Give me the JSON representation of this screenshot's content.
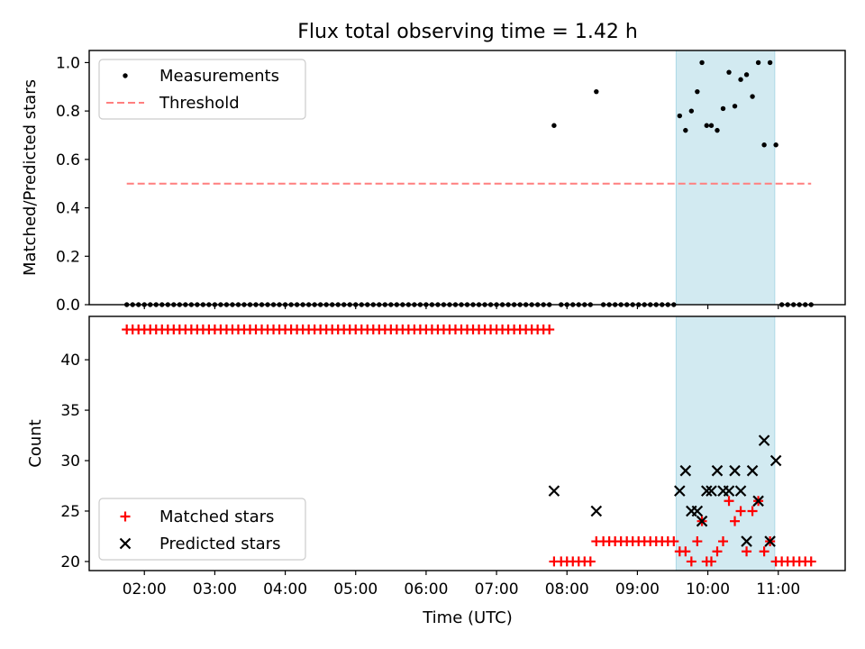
{
  "figure": {
    "title": "Flux total observing time = 1.42 h",
    "xlabel": "Time (UTC)"
  },
  "colors": {
    "measurement": "#000000",
    "threshold": "#ff7f7f",
    "matched": "#ff0000",
    "predicted": "#000000",
    "highlight": "#add8e6"
  },
  "chart_data": [
    {
      "type": "scatter",
      "ylabel": "Matched/Predicted stars",
      "xlim": [
        "01:13",
        "11:57"
      ],
      "ylim": [
        0,
        1.05
      ],
      "yticks": [
        0.0,
        0.2,
        0.4,
        0.6,
        0.8,
        1.0
      ],
      "ytick_labels": [
        "0.0",
        "0.2",
        "0.4",
        "0.6",
        "0.8",
        "1.0"
      ],
      "shaded_region": {
        "x": [
          "09:33",
          "10:57"
        ]
      },
      "legend": {
        "placement": "upper-left",
        "entries": [
          "Measurements",
          "Threshold"
        ]
      },
      "threshold": {
        "name": "Threshold",
        "y": 0.5,
        "x": [
          "01:45",
          "11:28"
        ]
      },
      "series": [
        {
          "name": "Measurements",
          "points": [
            [
              "01:45",
              0
            ],
            [
              "01:50",
              0
            ],
            [
              "01:55",
              0
            ],
            [
              "02:00",
              0
            ],
            [
              "02:05",
              0
            ],
            [
              "02:10",
              0
            ],
            [
              "02:15",
              0
            ],
            [
              "02:20",
              0
            ],
            [
              "02:25",
              0
            ],
            [
              "02:30",
              0
            ],
            [
              "02:35",
              0
            ],
            [
              "02:40",
              0
            ],
            [
              "02:45",
              0
            ],
            [
              "02:50",
              0
            ],
            [
              "02:55",
              0
            ],
            [
              "03:00",
              0
            ],
            [
              "03:05",
              0
            ],
            [
              "03:10",
              0
            ],
            [
              "03:15",
              0
            ],
            [
              "03:20",
              0
            ],
            [
              "03:25",
              0
            ],
            [
              "03:30",
              0
            ],
            [
              "03:35",
              0
            ],
            [
              "03:40",
              0
            ],
            [
              "03:45",
              0
            ],
            [
              "03:50",
              0
            ],
            [
              "03:55",
              0
            ],
            [
              "04:00",
              0
            ],
            [
              "04:05",
              0
            ],
            [
              "04:10",
              0
            ],
            [
              "04:15",
              0
            ],
            [
              "04:20",
              0
            ],
            [
              "04:25",
              0
            ],
            [
              "04:30",
              0
            ],
            [
              "04:35",
              0
            ],
            [
              "04:40",
              0
            ],
            [
              "04:45",
              0
            ],
            [
              "04:50",
              0
            ],
            [
              "04:55",
              0
            ],
            [
              "05:00",
              0
            ],
            [
              "05:05",
              0
            ],
            [
              "05:10",
              0
            ],
            [
              "05:15",
              0
            ],
            [
              "05:20",
              0
            ],
            [
              "05:25",
              0
            ],
            [
              "05:30",
              0
            ],
            [
              "05:35",
              0
            ],
            [
              "05:40",
              0
            ],
            [
              "05:45",
              0
            ],
            [
              "05:50",
              0
            ],
            [
              "05:55",
              0
            ],
            [
              "06:00",
              0
            ],
            [
              "06:05",
              0
            ],
            [
              "06:10",
              0
            ],
            [
              "06:15",
              0
            ],
            [
              "06:20",
              0
            ],
            [
              "06:25",
              0
            ],
            [
              "06:30",
              0
            ],
            [
              "06:35",
              0
            ],
            [
              "06:40",
              0
            ],
            [
              "06:45",
              0
            ],
            [
              "06:50",
              0
            ],
            [
              "06:55",
              0
            ],
            [
              "07:00",
              0
            ],
            [
              "07:05",
              0
            ],
            [
              "07:10",
              0
            ],
            [
              "07:15",
              0
            ],
            [
              "07:20",
              0
            ],
            [
              "07:25",
              0
            ],
            [
              "07:30",
              0
            ],
            [
              "07:35",
              0
            ],
            [
              "07:40",
              0
            ],
            [
              "07:45",
              0
            ],
            [
              "07:49",
              0.74
            ],
            [
              "07:55",
              0
            ],
            [
              "08:00",
              0
            ],
            [
              "08:05",
              0
            ],
            [
              "08:10",
              0
            ],
            [
              "08:15",
              0
            ],
            [
              "08:20",
              0
            ],
            [
              "08:25",
              0.88
            ],
            [
              "08:31",
              0
            ],
            [
              "08:36",
              0
            ],
            [
              "08:41",
              0
            ],
            [
              "08:46",
              0
            ],
            [
              "08:51",
              0
            ],
            [
              "08:56",
              0
            ],
            [
              "09:01",
              0
            ],
            [
              "09:06",
              0
            ],
            [
              "09:11",
              0
            ],
            [
              "09:16",
              0
            ],
            [
              "09:21",
              0
            ],
            [
              "09:26",
              0
            ],
            [
              "09:31",
              0
            ],
            [
              "09:36",
              0.78
            ],
            [
              "09:41",
              0.72
            ],
            [
              "09:46",
              0.8
            ],
            [
              "09:51",
              0.88
            ],
            [
              "09:55",
              1.0
            ],
            [
              "09:59",
              0.74
            ],
            [
              "10:03",
              0.74
            ],
            [
              "10:08",
              0.72
            ],
            [
              "10:13",
              0.81
            ],
            [
              "10:18",
              0.96
            ],
            [
              "10:23",
              0.82
            ],
            [
              "10:28",
              0.93
            ],
            [
              "10:33",
              0.95
            ],
            [
              "10:38",
              0.86
            ],
            [
              "10:43",
              1.0
            ],
            [
              "10:48",
              0.66
            ],
            [
              "10:53",
              1.0
            ],
            [
              "10:58",
              0.66
            ],
            [
              "11:03",
              0
            ],
            [
              "11:08",
              0
            ],
            [
              "11:13",
              0
            ],
            [
              "11:18",
              0
            ],
            [
              "11:23",
              0
            ],
            [
              "11:28",
              0
            ]
          ]
        }
      ]
    },
    {
      "type": "scatter",
      "ylabel": "Count",
      "xlim": [
        "01:13",
        "11:57"
      ],
      "ylim": [
        19.1,
        44.3
      ],
      "yticks": [
        20,
        25,
        30,
        35,
        40
      ],
      "ytick_labels": [
        "20",
        "25",
        "30",
        "35",
        "40"
      ],
      "xticks": [
        "02:00",
        "03:00",
        "04:00",
        "05:00",
        "06:00",
        "07:00",
        "08:00",
        "09:00",
        "10:00",
        "11:00"
      ],
      "shaded_region": {
        "x": [
          "09:33",
          "10:57"
        ]
      },
      "legend": {
        "placement": "lower-left",
        "entries": [
          "Matched stars",
          "Predicted stars"
        ]
      },
      "series": [
        {
          "name": "Matched stars",
          "marker": "plus",
          "points": [
            [
              "01:45",
              43
            ],
            [
              "01:50",
              43
            ],
            [
              "01:55",
              43
            ],
            [
              "02:00",
              43
            ],
            [
              "02:05",
              43
            ],
            [
              "02:10",
              43
            ],
            [
              "02:15",
              43
            ],
            [
              "02:20",
              43
            ],
            [
              "02:25",
              43
            ],
            [
              "02:30",
              43
            ],
            [
              "02:35",
              43
            ],
            [
              "02:40",
              43
            ],
            [
              "02:45",
              43
            ],
            [
              "02:50",
              43
            ],
            [
              "02:55",
              43
            ],
            [
              "03:00",
              43
            ],
            [
              "03:05",
              43
            ],
            [
              "03:10",
              43
            ],
            [
              "03:15",
              43
            ],
            [
              "03:20",
              43
            ],
            [
              "03:25",
              43
            ],
            [
              "03:30",
              43
            ],
            [
              "03:35",
              43
            ],
            [
              "03:40",
              43
            ],
            [
              "03:45",
              43
            ],
            [
              "03:50",
              43
            ],
            [
              "03:55",
              43
            ],
            [
              "04:00",
              43
            ],
            [
              "04:05",
              43
            ],
            [
              "04:10",
              43
            ],
            [
              "04:15",
              43
            ],
            [
              "04:20",
              43
            ],
            [
              "04:25",
              43
            ],
            [
              "04:30",
              43
            ],
            [
              "04:35",
              43
            ],
            [
              "04:40",
              43
            ],
            [
              "04:45",
              43
            ],
            [
              "04:50",
              43
            ],
            [
              "04:55",
              43
            ],
            [
              "05:00",
              43
            ],
            [
              "05:05",
              43
            ],
            [
              "05:10",
              43
            ],
            [
              "05:15",
              43
            ],
            [
              "05:20",
              43
            ],
            [
              "05:25",
              43
            ],
            [
              "05:30",
              43
            ],
            [
              "05:35",
              43
            ],
            [
              "05:40",
              43
            ],
            [
              "05:45",
              43
            ],
            [
              "05:50",
              43
            ],
            [
              "05:55",
              43
            ],
            [
              "06:00",
              43
            ],
            [
              "06:05",
              43
            ],
            [
              "06:10",
              43
            ],
            [
              "06:15",
              43
            ],
            [
              "06:20",
              43
            ],
            [
              "06:25",
              43
            ],
            [
              "06:30",
              43
            ],
            [
              "06:35",
              43
            ],
            [
              "06:40",
              43
            ],
            [
              "06:45",
              43
            ],
            [
              "06:50",
              43
            ],
            [
              "06:55",
              43
            ],
            [
              "07:00",
              43
            ],
            [
              "07:05",
              43
            ],
            [
              "07:10",
              43
            ],
            [
              "07:15",
              43
            ],
            [
              "07:20",
              43
            ],
            [
              "07:25",
              43
            ],
            [
              "07:30",
              43
            ],
            [
              "07:35",
              43
            ],
            [
              "07:40",
              43
            ],
            [
              "07:45",
              43
            ],
            [
              "07:49",
              20
            ],
            [
              "07:55",
              20
            ],
            [
              "08:00",
              20
            ],
            [
              "08:05",
              20
            ],
            [
              "08:10",
              20
            ],
            [
              "08:15",
              20
            ],
            [
              "08:20",
              20
            ],
            [
              "08:25",
              22
            ],
            [
              "08:31",
              22
            ],
            [
              "08:36",
              22
            ],
            [
              "08:41",
              22
            ],
            [
              "08:46",
              22
            ],
            [
              "08:51",
              22
            ],
            [
              "08:56",
              22
            ],
            [
              "09:01",
              22
            ],
            [
              "09:06",
              22
            ],
            [
              "09:11",
              22
            ],
            [
              "09:16",
              22
            ],
            [
              "09:21",
              22
            ],
            [
              "09:26",
              22
            ],
            [
              "09:31",
              22
            ],
            [
              "09:36",
              21
            ],
            [
              "09:41",
              21
            ],
            [
              "09:46",
              20
            ],
            [
              "09:51",
              22
            ],
            [
              "09:55",
              24
            ],
            [
              "09:59",
              20
            ],
            [
              "10:03",
              20
            ],
            [
              "10:08",
              21
            ],
            [
              "10:13",
              22
            ],
            [
              "10:18",
              26
            ],
            [
              "10:23",
              24
            ],
            [
              "10:28",
              25
            ],
            [
              "10:33",
              21
            ],
            [
              "10:38",
              25
            ],
            [
              "10:43",
              26
            ],
            [
              "10:48",
              21
            ],
            [
              "10:53",
              22
            ],
            [
              "10:58",
              20
            ],
            [
              "11:03",
              20
            ],
            [
              "11:08",
              20
            ],
            [
              "11:13",
              20
            ],
            [
              "11:18",
              20
            ],
            [
              "11:23",
              20
            ],
            [
              "11:28",
              20
            ]
          ]
        },
        {
          "name": "Predicted stars",
          "marker": "x",
          "points": [
            [
              "07:49",
              27
            ],
            [
              "08:25",
              25
            ],
            [
              "09:36",
              27
            ],
            [
              "09:41",
              29
            ],
            [
              "09:46",
              25
            ],
            [
              "09:51",
              25
            ],
            [
              "09:55",
              24
            ],
            [
              "09:59",
              27
            ],
            [
              "10:03",
              27
            ],
            [
              "10:08",
              29
            ],
            [
              "10:13",
              27
            ],
            [
              "10:18",
              27
            ],
            [
              "10:23",
              29
            ],
            [
              "10:28",
              27
            ],
            [
              "10:33",
              22
            ],
            [
              "10:38",
              29
            ],
            [
              "10:43",
              26
            ],
            [
              "10:48",
              32
            ],
            [
              "10:53",
              22
            ],
            [
              "10:58",
              30
            ]
          ]
        }
      ]
    }
  ]
}
